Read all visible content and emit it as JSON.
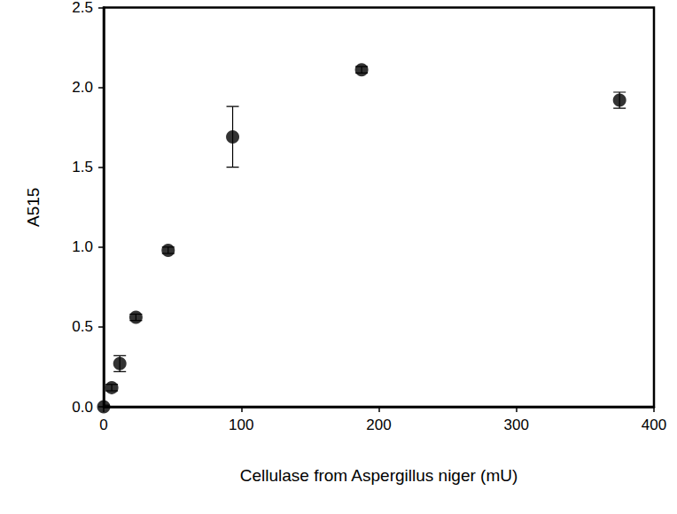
{
  "chart_data": {
    "type": "scatter",
    "x_label": "Cellulase from Aspergillus niger (mU)",
    "y_label": "A515",
    "x": [
      0,
      5.86,
      11.72,
      23.44,
      46.88,
      93.75,
      187.5,
      375
    ],
    "values": [
      0.0,
      0.12,
      0.27,
      0.56,
      0.98,
      1.69,
      2.11,
      1.92
    ],
    "errors": [
      0.01,
      0.02,
      0.05,
      0.02,
      0.02,
      0.19,
      0.02,
      0.05
    ],
    "color": "#000000",
    "marker": "circle",
    "xlim": [
      0,
      400
    ],
    "xticks": [
      0,
      100,
      200,
      300,
      400
    ],
    "ylim": [
      0,
      2.5
    ],
    "yticks": [
      {
        "value": 0,
        "label": "0.0"
      },
      {
        "value": 0.5,
        "label": "0.5"
      },
      {
        "value": 1,
        "label": "1.0"
      },
      {
        "value": 1.5,
        "label": "1.5"
      },
      {
        "value": 2,
        "label": "2.0"
      },
      {
        "value": 2.5,
        "label": "2.5"
      }
    ],
    "grid": false
  }
}
